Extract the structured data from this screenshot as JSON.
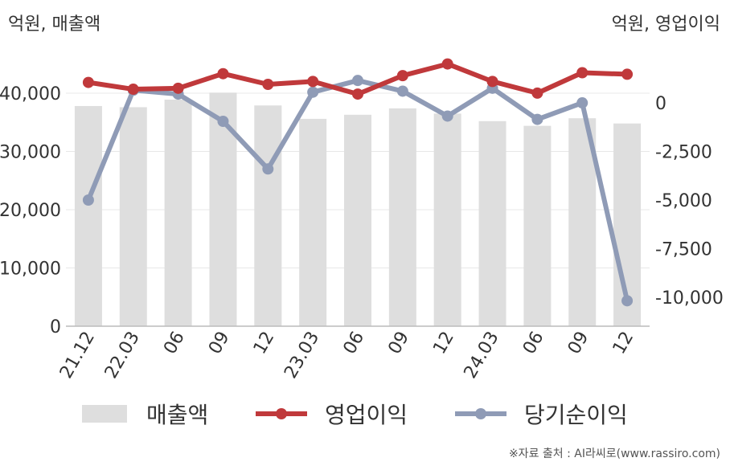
{
  "unit_left": "억원, 매출액",
  "unit_right": "억원, 영업이익",
  "source": "※자료 출처 : AI라씨로(www.rassiro.com)",
  "colors": {
    "bar": "#dedede",
    "operating_profit": "#c0393b",
    "net_income": "#8f9bb6",
    "grid": "#e8e8e8",
    "axis": "#bbbbbb"
  },
  "chart_data": {
    "type": "bar+line",
    "categories": [
      "21.12",
      "22.03",
      "06",
      "09",
      "12",
      "23.03",
      "06",
      "09",
      "12",
      "24.03",
      "06",
      "09",
      "12"
    ],
    "left_axis": {
      "min": 0,
      "max": 40000,
      "ticks": [
        0,
        10000,
        20000,
        30000,
        40000
      ],
      "tick_labels": [
        "0",
        "10,000",
        "20,000",
        "30,000",
        "40,000"
      ]
    },
    "right_axis": {
      "ticks": [
        0,
        -2500,
        -5000,
        -7500,
        -10000
      ],
      "tick_labels": [
        "0",
        "-2,500",
        "-5,000",
        "-7,500",
        "-10,000"
      ]
    },
    "series": [
      {
        "name": "매출액",
        "type": "bar",
        "axis": "left",
        "values": [
          37800,
          37600,
          38900,
          40100,
          37900,
          35600,
          36300,
          37400,
          36500,
          35200,
          34400,
          35700,
          34800
        ]
      },
      {
        "name": "영업이익",
        "type": "line",
        "axis": "right",
        "values": [
          1050,
          700,
          750,
          1500,
          950,
          1100,
          450,
          1400,
          2000,
          1100,
          500,
          1550,
          1470
        ]
      },
      {
        "name": "당기순이익",
        "type": "line",
        "axis": "right",
        "values": [
          -5000,
          650,
          450,
          -950,
          -3400,
          550,
          1150,
          600,
          -680,
          750,
          -850,
          -1,
          -10180
        ]
      }
    ],
    "grid": true,
    "legend_position": "bottom"
  }
}
